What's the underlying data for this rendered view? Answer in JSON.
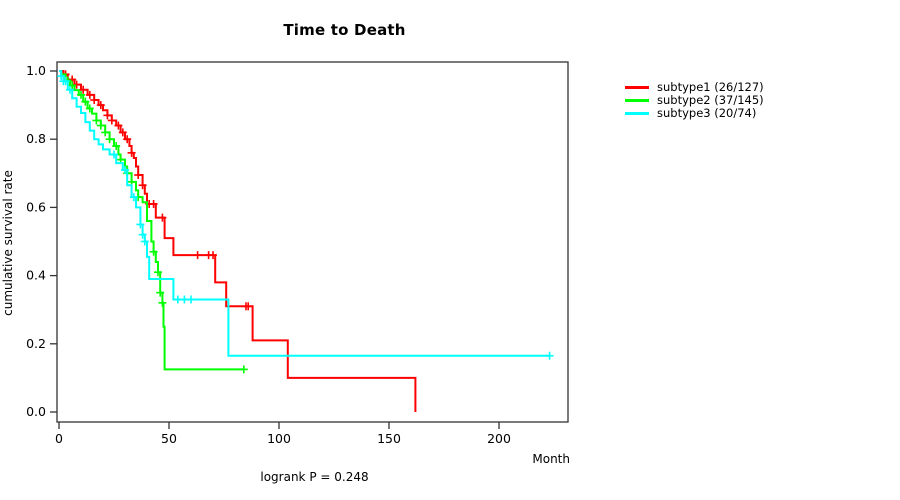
{
  "chart_data": {
    "type": "line",
    "variant": "kaplan-meier-step-survival",
    "title": "Time to Death",
    "xlabel": "Month",
    "ylabel": "cumulative survival rate",
    "annotation": "logrank P = 0.248",
    "xlim": [
      0,
      232
    ],
    "ylim": [
      0.0,
      1.0
    ],
    "xticks": [
      0,
      50,
      100,
      150,
      200
    ],
    "yticks": [
      0.0,
      0.2,
      0.4,
      0.6,
      0.8,
      1.0
    ],
    "grid": false,
    "legend_position": "top-right-outside",
    "axis_color": "#333333",
    "background_color": "#ffffff",
    "series": [
      {
        "name": "subtype1 (26/127)",
        "events": 26,
        "n": 127,
        "color": "#ff0000",
        "points": [
          [
            0,
            1.0
          ],
          [
            2,
            0.99
          ],
          [
            4,
            0.975
          ],
          [
            7,
            0.96
          ],
          [
            10,
            0.945
          ],
          [
            13,
            0.93
          ],
          [
            16,
            0.915
          ],
          [
            18,
            0.9
          ],
          [
            20,
            0.885
          ],
          [
            22,
            0.87
          ],
          [
            24,
            0.855
          ],
          [
            26,
            0.84
          ],
          [
            28,
            0.82
          ],
          [
            30,
            0.8
          ],
          [
            32,
            0.78
          ],
          [
            33,
            0.76
          ],
          [
            34,
            0.745
          ],
          [
            35,
            0.72
          ],
          [
            36,
            0.695
          ],
          [
            38,
            0.665
          ],
          [
            39,
            0.64
          ],
          [
            40,
            0.61
          ],
          [
            44,
            0.57
          ],
          [
            48,
            0.51
          ],
          [
            52,
            0.46
          ],
          [
            71,
            0.38
          ],
          [
            76,
            0.31
          ],
          [
            88,
            0.21
          ],
          [
            104,
            0.1
          ],
          [
            162,
            0.0
          ]
        ],
        "censor_months": [
          3,
          6,
          8,
          11,
          14,
          16,
          19,
          22,
          24,
          27,
          29,
          31,
          33,
          36,
          38,
          41,
          43,
          47,
          63,
          68,
          70,
          85,
          86
        ]
      },
      {
        "name": "subtype2 (37/145)",
        "events": 37,
        "n": 145,
        "color": "#00ff00",
        "points": [
          [
            0,
            1.0
          ],
          [
            1,
            0.99
          ],
          [
            3,
            0.972
          ],
          [
            5,
            0.958
          ],
          [
            7,
            0.944
          ],
          [
            9,
            0.93
          ],
          [
            11,
            0.91
          ],
          [
            13,
            0.89
          ],
          [
            15,
            0.875
          ],
          [
            17,
            0.855
          ],
          [
            19,
            0.84
          ],
          [
            21,
            0.82
          ],
          [
            23,
            0.8
          ],
          [
            25,
            0.78
          ],
          [
            27,
            0.755
          ],
          [
            28,
            0.74
          ],
          [
            30,
            0.72
          ],
          [
            31,
            0.7
          ],
          [
            33,
            0.675
          ],
          [
            35,
            0.65
          ],
          [
            36,
            0.63
          ],
          [
            38,
            0.615
          ],
          [
            40,
            0.56
          ],
          [
            42,
            0.5
          ],
          [
            43,
            0.47
          ],
          [
            44,
            0.44
          ],
          [
            45,
            0.41
          ],
          [
            46,
            0.35
          ],
          [
            47,
            0.32
          ],
          [
            47.5,
            0.25
          ],
          [
            48,
            0.125
          ],
          [
            84,
            0.125
          ]
        ],
        "censor_months": [
          4,
          6,
          10,
          12,
          14,
          17,
          19,
          21,
          23,
          26,
          28,
          31,
          33,
          36,
          43,
          45,
          46,
          47,
          84
        ]
      },
      {
        "name": "subtype3 (20/74)",
        "events": 20,
        "n": 74,
        "color": "#00ffff",
        "points": [
          [
            0,
            1.0
          ],
          [
            1,
            0.985
          ],
          [
            2,
            0.97
          ],
          [
            4,
            0.945
          ],
          [
            6,
            0.92
          ],
          [
            8,
            0.895
          ],
          [
            10,
            0.877
          ],
          [
            12,
            0.85
          ],
          [
            14,
            0.825
          ],
          [
            16,
            0.8
          ],
          [
            18,
            0.785
          ],
          [
            20,
            0.77
          ],
          [
            23,
            0.755
          ],
          [
            26,
            0.73
          ],
          [
            29,
            0.71
          ],
          [
            31,
            0.665
          ],
          [
            33,
            0.63
          ],
          [
            35,
            0.6
          ],
          [
            37,
            0.55
          ],
          [
            38,
            0.52
          ],
          [
            39,
            0.5
          ],
          [
            40,
            0.455
          ],
          [
            41,
            0.39
          ],
          [
            52,
            0.33
          ],
          [
            77,
            0.165
          ],
          [
            223,
            0.165
          ]
        ],
        "censor_months": [
          1,
          2,
          3,
          5,
          25,
          30,
          34,
          37,
          38,
          39,
          54,
          57,
          60,
          223
        ]
      }
    ]
  }
}
